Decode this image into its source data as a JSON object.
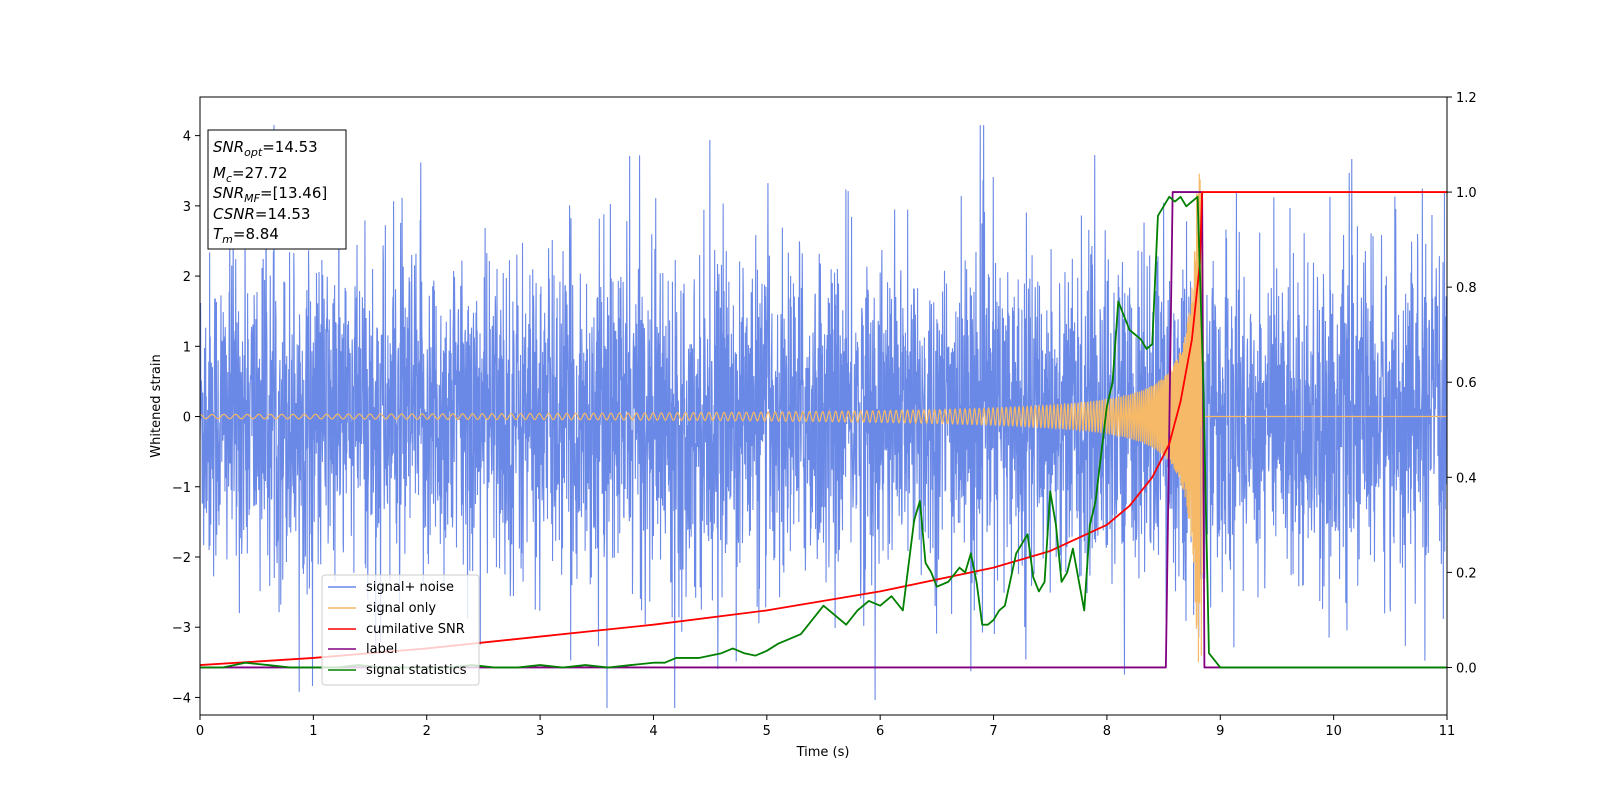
{
  "chart_data": {
    "type": "line",
    "xlabel": "Time (s)",
    "ylabel": "Whitened strain",
    "xlim": [
      0,
      11
    ],
    "ylim": [
      -4.25,
      4.55
    ],
    "ylim_right": [
      -0.1,
      1.2
    ],
    "x_ticks": [
      "0",
      "1",
      "2",
      "3",
      "4",
      "5",
      "6",
      "7",
      "8",
      "9",
      "10",
      "11"
    ],
    "y_ticks": [
      "4",
      "3",
      "2",
      "1",
      "0",
      "−1",
      "−2",
      "−3",
      "−4"
    ],
    "y_ticks_right": [
      "1.2",
      "1.0",
      "0.8",
      "0.6",
      "0.4",
      "0.2",
      "0.0"
    ],
    "grid": false,
    "legend_position": "lower-left",
    "colors": {
      "signal_noise": "#6a88e6",
      "signal_only": "#f5b967",
      "cumulative_snr": "#ff0000",
      "label": "#800080",
      "signal_statistics": "#008000"
    },
    "annotation": {
      "snr_opt": {
        "main": "SNR",
        "sub": "opt",
        "value": "=14.53"
      },
      "mc": {
        "main": "M",
        "sub": "c",
        "value": "=27.72"
      },
      "snr_mf": {
        "main": "SNR",
        "sub": "MF",
        "value": "=[13.46]"
      },
      "csnr": {
        "main": "CSNR",
        "value": "=14.53"
      },
      "tm": {
        "main": "T",
        "sub": "m",
        "value": "=8.84"
      }
    },
    "series": [
      {
        "name": "signal+ noise",
        "axis": "left",
        "description_values": "white noise, std about 1.2, amplitude up to about 4.2",
        "x_range": [
          0,
          11
        ]
      },
      {
        "name": "signal only",
        "axis": "left",
        "chirp": {
          "t_merger": 8.84,
          "amplitude_start": 0.03,
          "amplitude_peak": 3.5
        }
      },
      {
        "name": "cumilative SNR",
        "axis": "right",
        "x": [
          0,
          1,
          2,
          3,
          4,
          5,
          6,
          7,
          7.5,
          8,
          8.2,
          8.4,
          8.55,
          8.65,
          8.75,
          8.82,
          8.84,
          11
        ],
        "y": [
          0.005,
          0.02,
          0.04,
          0.065,
          0.09,
          0.12,
          0.16,
          0.21,
          0.245,
          0.3,
          0.34,
          0.4,
          0.47,
          0.56,
          0.69,
          0.85,
          1.0,
          1.0
        ]
      },
      {
        "name": "label",
        "axis": "right",
        "x": [
          0,
          8.52,
          8.58,
          8.84,
          8.86,
          11
        ],
        "y": [
          0,
          0,
          1,
          1,
          0,
          0
        ]
      },
      {
        "name": "signal statistics",
        "axis": "right",
        "x": [
          0,
          0.2,
          0.4,
          0.6,
          0.8,
          1.0,
          1.2,
          1.4,
          1.6,
          1.8,
          2.0,
          2.2,
          2.4,
          2.6,
          2.8,
          3.0,
          3.2,
          3.4,
          3.6,
          3.8,
          4.0,
          4.1,
          4.2,
          4.4,
          4.6,
          4.7,
          4.8,
          4.9,
          5.0,
          5.1,
          5.2,
          5.3,
          5.4,
          5.5,
          5.6,
          5.7,
          5.8,
          5.9,
          6.0,
          6.1,
          6.2,
          6.3,
          6.35,
          6.4,
          6.45,
          6.5,
          6.6,
          6.7,
          6.75,
          6.8,
          6.85,
          6.9,
          6.95,
          7.0,
          7.05,
          7.1,
          7.2,
          7.3,
          7.35,
          7.4,
          7.45,
          7.5,
          7.55,
          7.6,
          7.65,
          7.7,
          7.8,
          7.85,
          7.9,
          8.0,
          8.05,
          8.1,
          8.15,
          8.2,
          8.25,
          8.3,
          8.35,
          8.4,
          8.45,
          8.5,
          8.55,
          8.6,
          8.65,
          8.7,
          8.75,
          8.8,
          8.85,
          8.9,
          9.0,
          11
        ],
        "y": [
          0,
          0,
          0.01,
          0.005,
          0,
          0,
          0,
          0.005,
          0,
          0,
          0,
          0,
          0.005,
          0,
          0,
          0.005,
          0,
          0.005,
          0,
          0.005,
          0.01,
          0.01,
          0.02,
          0.02,
          0.03,
          0.04,
          0.03,
          0.025,
          0.035,
          0.05,
          0.06,
          0.07,
          0.1,
          0.13,
          0.11,
          0.09,
          0.12,
          0.14,
          0.13,
          0.15,
          0.12,
          0.31,
          0.35,
          0.22,
          0.2,
          0.17,
          0.18,
          0.21,
          0.2,
          0.24,
          0.18,
          0.09,
          0.09,
          0.1,
          0.12,
          0.13,
          0.24,
          0.28,
          0.19,
          0.16,
          0.18,
          0.37,
          0.3,
          0.18,
          0.2,
          0.25,
          0.12,
          0.3,
          0.35,
          0.55,
          0.6,
          0.77,
          0.74,
          0.71,
          0.7,
          0.69,
          0.67,
          0.68,
          0.95,
          0.97,
          0.99,
          0.98,
          0.99,
          0.97,
          0.98,
          0.99,
          0.6,
          0.03,
          0,
          0
        ]
      }
    ]
  }
}
